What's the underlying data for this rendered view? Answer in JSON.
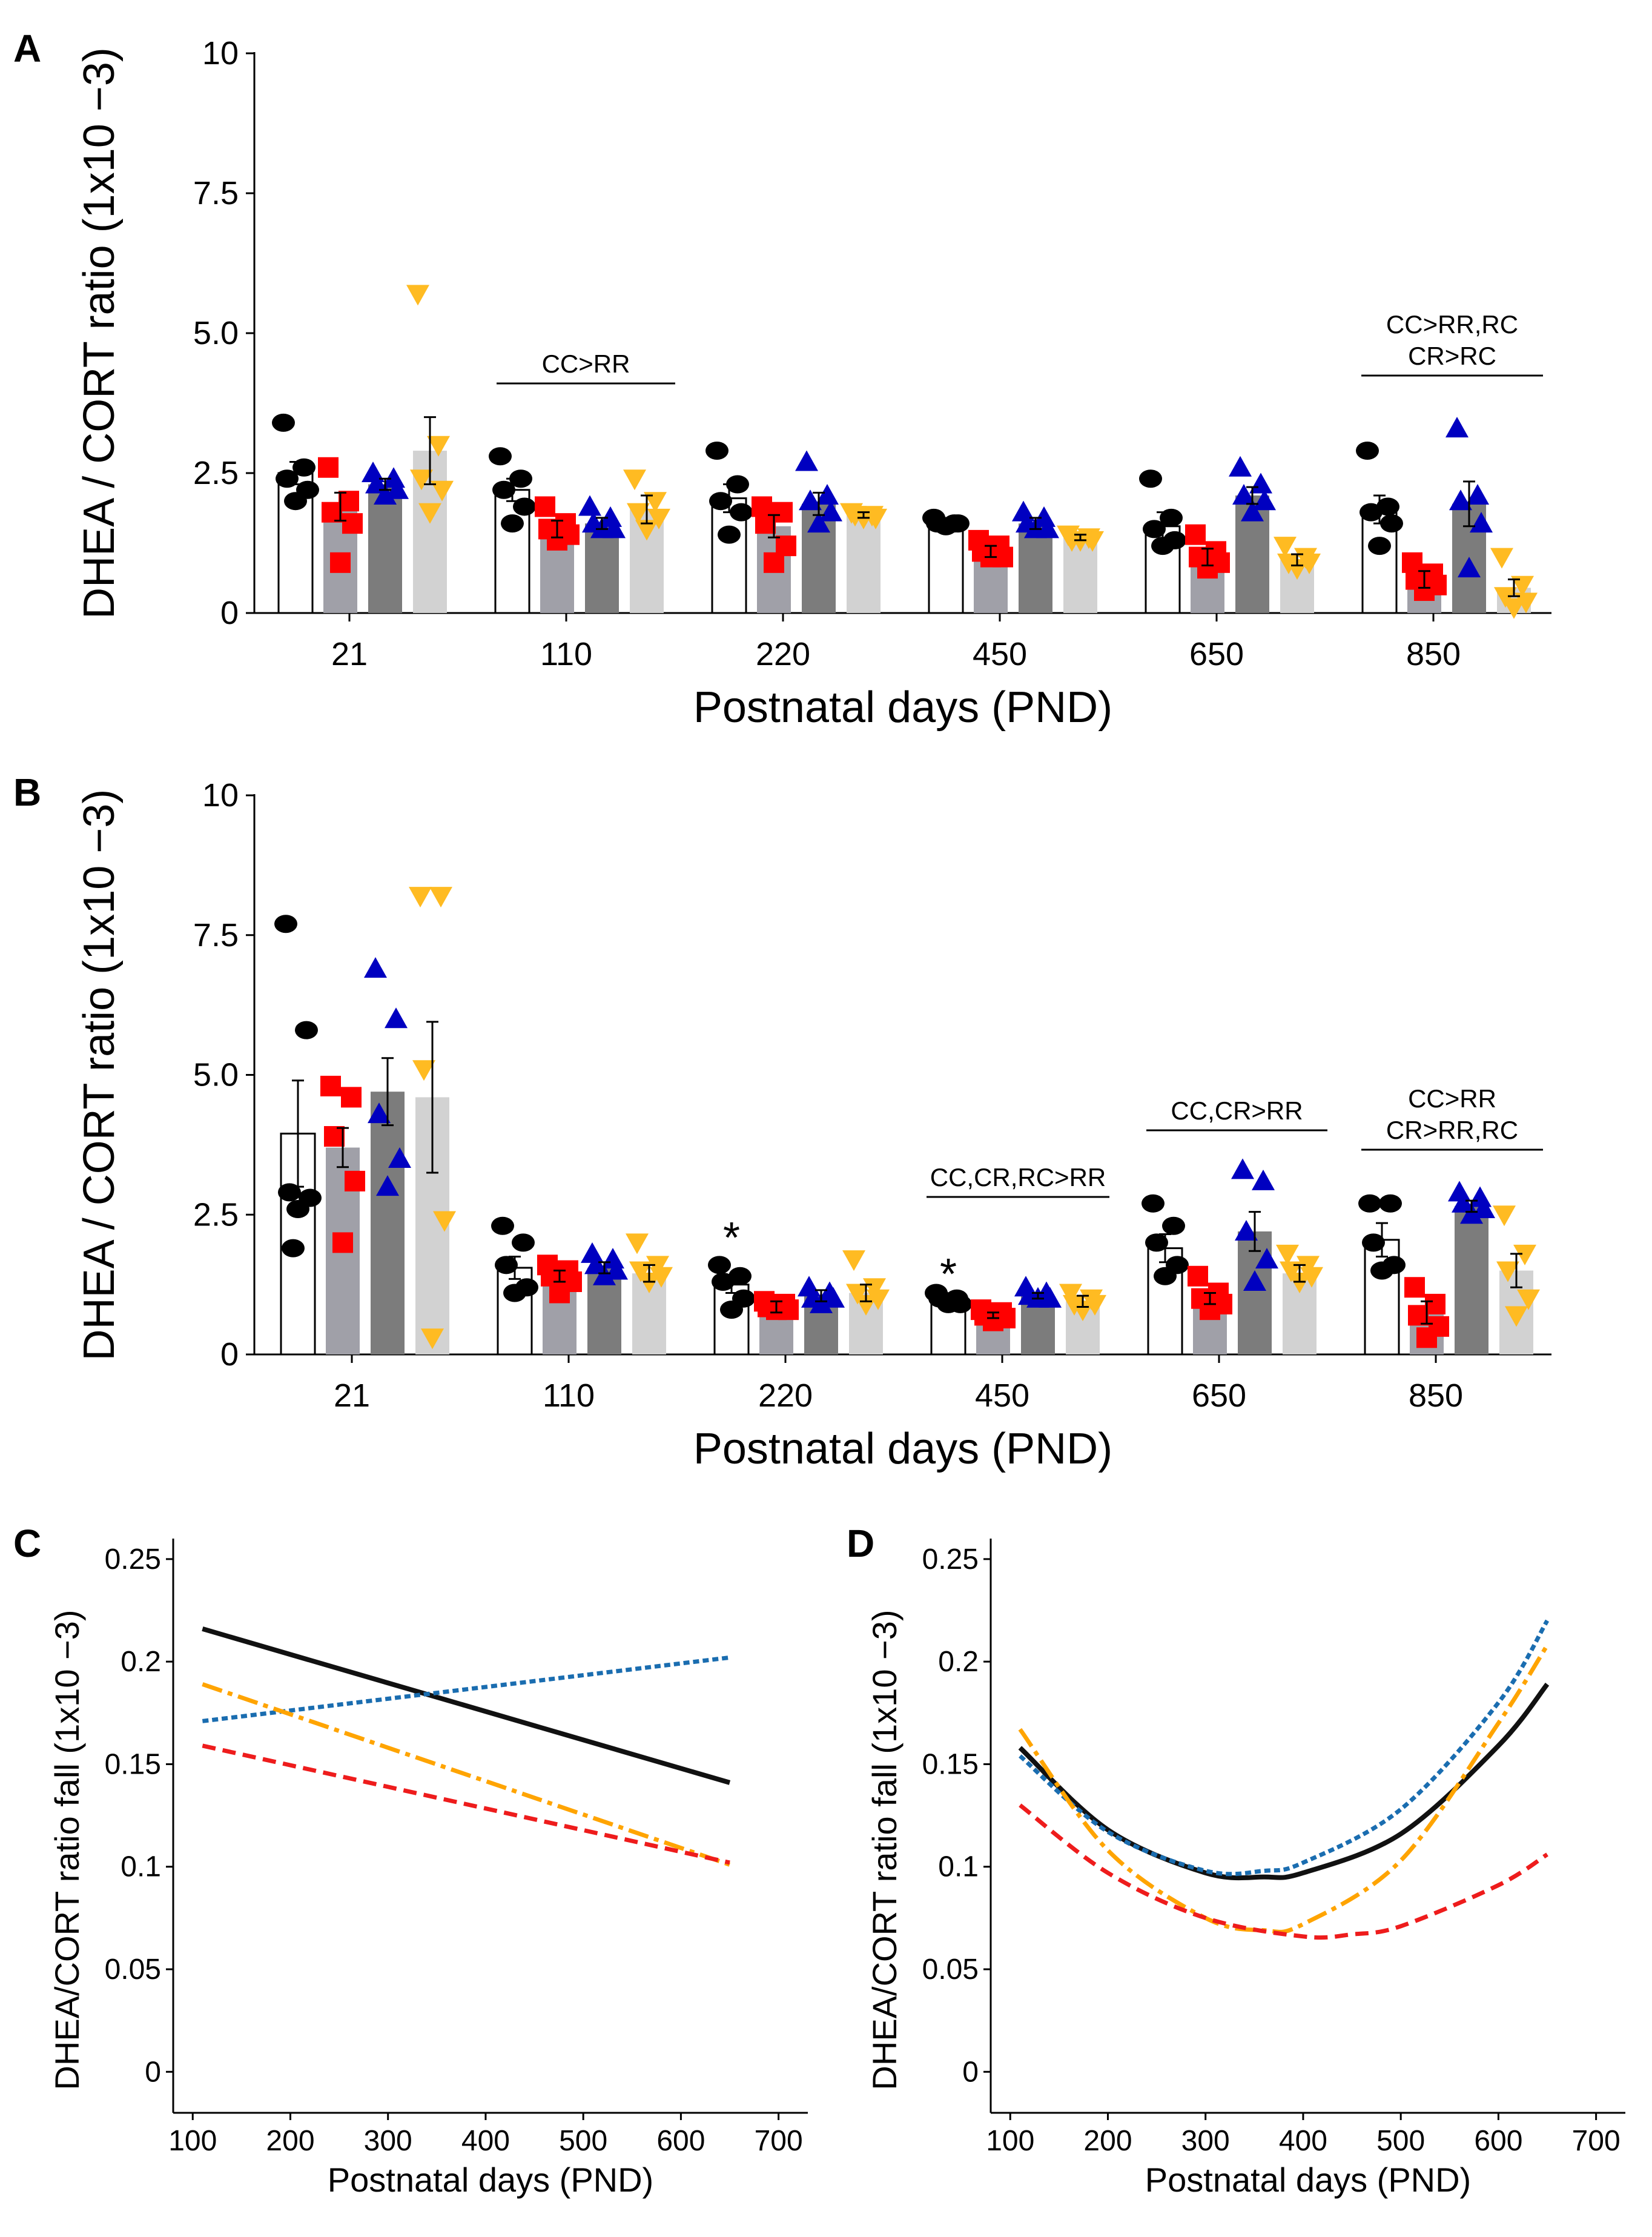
{
  "colors": {
    "CC": "#000000",
    "CR": "#ff0000",
    "RC": "#0000c0",
    "RR": "#ffbb22",
    "CC_bar": "#ffffff",
    "CR_bar": "#a0a0a8",
    "RC_bar": "#7c7c7c",
    "RR_bar": "#d2d2d2",
    "lineC_black": "#111111",
    "lineC_blue": "#1a6db0",
    "lineC_orange": "#ffa400",
    "lineC_red": "#ee1c1c"
  },
  "chart_data": [
    {
      "panel": "A",
      "type": "bar",
      "ylabel": "DHEA / CORT ratio (1x10 −3)",
      "xlabel": "Postnatal days (PND)",
      "ylim": [
        0,
        10
      ],
      "yticks": [
        "0",
        "2.5",
        "5.0",
        "7.5",
        "10"
      ],
      "categories": [
        "21",
        "110",
        "220",
        "450",
        "650",
        "850"
      ],
      "groups": [
        "CC",
        "CR",
        "RC",
        "RR"
      ],
      "markers": [
        "circle",
        "square",
        "triangle-up",
        "triangle-down"
      ],
      "series": [
        {
          "name": "CC",
          "values": [
            2.5,
            2.2,
            2.05,
            1.6,
            1.55,
            1.85
          ],
          "errors": [
            0.2,
            0.2,
            0.25,
            0.05,
            0.25,
            0.25
          ],
          "points": [
            [
              3.4,
              2.6,
              2.4,
              2.2,
              2.0
            ],
            [
              2.8,
              2.4,
              2.2,
              1.9,
              1.6
            ],
            [
              2.9,
              2.3,
              2.0,
              1.8,
              1.4
            ],
            [
              1.7,
              1.6,
              1.6,
              1.6,
              1.55
            ],
            [
              2.4,
              1.7,
              1.5,
              1.3,
              1.2
            ],
            [
              2.9,
              1.9,
              1.8,
              1.6,
              1.2
            ]
          ]
        },
        {
          "name": "CR",
          "values": [
            1.9,
            1.5,
            1.55,
            1.1,
            1.0,
            0.6
          ],
          "errors": [
            0.25,
            0.15,
            0.2,
            0.1,
            0.15,
            0.15
          ],
          "points": [
            [
              2.6,
              2.0,
              1.8,
              1.6,
              0.9
            ],
            [
              1.9,
              1.6,
              1.5,
              1.4,
              1.3
            ],
            [
              1.9,
              1.8,
              1.6,
              1.2,
              0.9
            ],
            [
              1.3,
              1.2,
              1.1,
              1.0,
              1.0
            ],
            [
              1.4,
              1.1,
              1.0,
              0.9,
              0.8
            ],
            [
              0.9,
              0.7,
              0.6,
              0.5,
              0.4
            ]
          ]
        },
        {
          "name": "RC",
          "values": [
            2.3,
            1.6,
            1.95,
            1.6,
            2.1,
            1.95
          ],
          "errors": [
            0.1,
            0.1,
            0.2,
            0.1,
            0.15,
            0.4
          ],
          "points": [
            [
              2.5,
              2.4,
              2.3,
              2.2,
              2.1
            ],
            [
              1.9,
              1.7,
              1.6,
              1.5,
              1.5
            ],
            [
              2.7,
              2.1,
              2.0,
              1.8,
              1.6
            ],
            [
              1.8,
              1.7,
              1.6,
              1.5,
              1.5
            ],
            [
              2.6,
              2.3,
              2.1,
              2.0,
              1.8
            ],
            [
              3.3,
              2.1,
              2.0,
              1.6,
              0.8
            ]
          ]
        },
        {
          "name": "RR",
          "values": [
            2.9,
            1.85,
            1.75,
            1.35,
            0.95,
            0.45
          ],
          "errors": [
            0.6,
            0.25,
            0.05,
            0.05,
            0.1,
            0.15
          ],
          "points": [
            [
              5.7,
              3.0,
              2.4,
              2.2,
              1.8
            ],
            [
              2.4,
              2.0,
              1.8,
              1.7,
              1.5
            ],
            [
              1.8,
              1.75,
              1.75,
              1.7,
              1.7
            ],
            [
              1.4,
              1.35,
              1.3,
              1.3,
              1.3
            ],
            [
              1.2,
              1.0,
              0.9,
              0.9,
              0.8
            ],
            [
              1.0,
              0.5,
              0.3,
              0.2,
              0.1
            ]
          ]
        }
      ],
      "annotations": [
        {
          "text": "CC>RR",
          "category": "110"
        },
        {
          "text": "CC>RR,RC",
          "text2": "CR>RC",
          "category": "850"
        }
      ]
    },
    {
      "panel": "B",
      "type": "bar",
      "ylabel": "DHEA / CORT ratio (1x10 −3)",
      "xlabel": "Postnatal days (PND)",
      "ylim": [
        0,
        10
      ],
      "yticks": [
        "0",
        "2.5",
        "5.0",
        "7.5",
        "10"
      ],
      "categories": [
        "21",
        "110",
        "220",
        "450",
        "650",
        "850"
      ],
      "groups": [
        "CC",
        "CR",
        "RC",
        "RR"
      ],
      "series": [
        {
          "name": "CC",
          "values": [
            3.95,
            1.55,
            1.25,
            1.0,
            1.9,
            2.05
          ],
          "errors": [
            0.95,
            0.2,
            0.15,
            0.05,
            0.25,
            0.3
          ],
          "points": [
            [
              7.7,
              5.8,
              2.9,
              2.8,
              2.6,
              1.9
            ],
            [
              2.3,
              2.0,
              1.6,
              1.2,
              1.1
            ],
            [
              1.6,
              1.4,
              1.3,
              1.0,
              0.8
            ],
            [
              1.1,
              1.0,
              1.0,
              0.9,
              0.9
            ],
            [
              2.7,
              2.3,
              2.0,
              1.6,
              1.4
            ],
            [
              2.7,
              2.7,
              2.0,
              1.6,
              1.5
            ]
          ]
        },
        {
          "name": "CR",
          "values": [
            3.7,
            1.4,
            0.85,
            0.7,
            1.0,
            0.75
          ],
          "errors": [
            0.35,
            0.1,
            0.1,
            0.05,
            0.1,
            0.2
          ],
          "points": [
            [
              4.8,
              4.6,
              3.9,
              3.1,
              2.0
            ],
            [
              1.6,
              1.5,
              1.4,
              1.3,
              1.1
            ],
            [
              0.95,
              0.9,
              0.85,
              0.8,
              0.8
            ],
            [
              0.8,
              0.75,
              0.7,
              0.65,
              0.6
            ],
            [
              1.4,
              1.1,
              1.0,
              0.9,
              0.8
            ],
            [
              1.2,
              0.9,
              0.7,
              0.5,
              0.3
            ]
          ]
        },
        {
          "name": "RC",
          "values": [
            4.7,
            1.55,
            1.05,
            1.05,
            2.2,
            2.65
          ],
          "errors": [
            0.6,
            0.1,
            0.1,
            0.05,
            0.35,
            0.1
          ],
          "points": [
            [
              6.9,
              6.0,
              4.3,
              3.5,
              3.0
            ],
            [
              1.8,
              1.7,
              1.6,
              1.5,
              1.4
            ],
            [
              1.2,
              1.1,
              1.0,
              1.0,
              0.9
            ],
            [
              1.2,
              1.1,
              1.05,
              1.0,
              1.0
            ],
            [
              3.3,
              3.1,
              2.2,
              1.7,
              1.3
            ],
            [
              2.9,
              2.8,
              2.7,
              2.6,
              2.5
            ]
          ]
        },
        {
          "name": "RR",
          "values": [
            4.6,
            1.45,
            1.1,
            0.95,
            1.45,
            1.5
          ],
          "errors": [
            1.35,
            0.15,
            0.15,
            0.1,
            0.15,
            0.3
          ],
          "points": [
            [
              8.2,
              8.2,
              5.1,
              2.4,
              0.3
            ],
            [
              2.0,
              1.6,
              1.5,
              1.4,
              1.3
            ],
            [
              1.7,
              1.2,
              1.1,
              1.0,
              0.9
            ],
            [
              1.1,
              1.0,
              0.9,
              0.9,
              0.8
            ],
            [
              1.8,
              1.6,
              1.5,
              1.4,
              1.3
            ],
            [
              2.5,
              1.8,
              1.5,
              1.0,
              0.7
            ]
          ]
        }
      ],
      "stars": [
        {
          "text": "*",
          "category": "220"
        },
        {
          "text": "*",
          "category": "450"
        }
      ],
      "annotations": [
        {
          "text": "CC,CR,RC>RR",
          "category": "450"
        },
        {
          "text": "CC,CR>RR",
          "category": "650"
        },
        {
          "text": "CC>RR",
          "text2": "CR>RR,RC",
          "category": "850"
        }
      ]
    },
    {
      "panel": "C",
      "type": "line",
      "ylabel": "DHEA/CORT ratio fall (1x10 −3)",
      "xlabel": "Postnatal days (PND)",
      "xlim": [
        80,
        730
      ],
      "ylim": [
        -0.02,
        0.26
      ],
      "xticks": [
        "100",
        "200",
        "300",
        "400",
        "500",
        "600",
        "700"
      ],
      "yticks": [
        "0",
        "0.05",
        "0.1",
        "0.15",
        "0.2",
        "0.25"
      ],
      "series": [
        {
          "name": "CC",
          "style": "solid",
          "x": [
            110,
            650
          ],
          "y": [
            0.216,
            0.141
          ]
        },
        {
          "name": "RC",
          "style": "dotted",
          "x": [
            110,
            650
          ],
          "y": [
            0.171,
            0.202
          ]
        },
        {
          "name": "RR",
          "style": "dashdot",
          "x": [
            110,
            650
          ],
          "y": [
            0.189,
            0.101
          ]
        },
        {
          "name": "CR",
          "style": "dashed",
          "x": [
            110,
            650
          ],
          "y": [
            0.159,
            0.102
          ]
        }
      ]
    },
    {
      "panel": "D",
      "type": "line",
      "ylabel": "DHEA/CORT ratio fall (1x10 −3)",
      "xlabel": "Postnatal days (PND)",
      "xlim": [
        80,
        730
      ],
      "ylim": [
        -0.02,
        0.26
      ],
      "xticks": [
        "100",
        "200",
        "300",
        "400",
        "500",
        "600",
        "700"
      ],
      "yticks": [
        "0",
        "0.05",
        "0.1",
        "0.15",
        "0.2",
        "0.25"
      ],
      "series": [
        {
          "name": "CC",
          "style": "solid",
          "x": [
            110,
            200,
            300,
            360,
            400,
            500,
            600,
            650
          ],
          "y": [
            0.158,
            0.118,
            0.097,
            0.095,
            0.097,
            0.116,
            0.159,
            0.189
          ]
        },
        {
          "name": "RC",
          "style": "dotted",
          "x": [
            110,
            200,
            300,
            360,
            400,
            500,
            600,
            650
          ],
          "y": [
            0.154,
            0.117,
            0.098,
            0.098,
            0.102,
            0.128,
            0.18,
            0.22
          ]
        },
        {
          "name": "RR",
          "style": "dashdot",
          "x": [
            110,
            200,
            300,
            360,
            400,
            500,
            600,
            650
          ],
          "y": [
            0.167,
            0.108,
            0.075,
            0.069,
            0.072,
            0.103,
            0.17,
            0.208
          ]
        },
        {
          "name": "CR",
          "style": "dashed",
          "x": [
            110,
            200,
            300,
            400,
            450,
            500,
            600,
            650
          ],
          "y": [
            0.13,
            0.097,
            0.075,
            0.066,
            0.067,
            0.071,
            0.091,
            0.106
          ]
        }
      ]
    }
  ],
  "panels": {
    "A": {
      "letter": "A"
    },
    "B": {
      "letter": "B"
    },
    "C": {
      "letter": "C"
    },
    "D": {
      "letter": "D"
    }
  }
}
